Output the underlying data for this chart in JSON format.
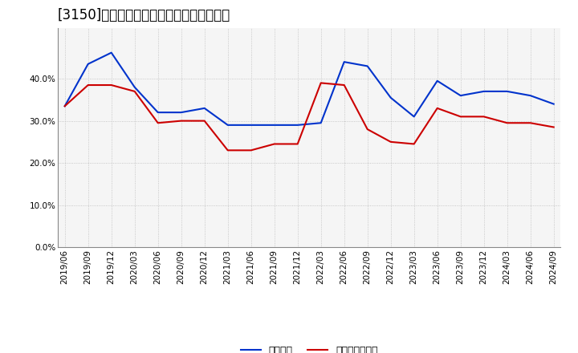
{
  "title": "[3150]　固定比率、固定長期適合率の推移",
  "x_labels": [
    "2019/06",
    "2019/09",
    "2019/12",
    "2020/03",
    "2020/06",
    "2020/09",
    "2020/12",
    "2021/03",
    "2021/06",
    "2021/09",
    "2021/12",
    "2022/03",
    "2022/06",
    "2022/09",
    "2022/12",
    "2023/03",
    "2023/06",
    "2023/09",
    "2023/12",
    "2024/03",
    "2024/06",
    "2024/09"
  ],
  "series1_name": "固定比率",
  "series1_color": "#0033cc",
  "series1_values": [
    0.335,
    0.435,
    0.462,
    0.38,
    0.32,
    0.32,
    0.33,
    0.29,
    0.29,
    0.29,
    0.29,
    0.295,
    0.44,
    0.43,
    0.355,
    0.31,
    0.395,
    0.36,
    0.37,
    0.37,
    0.36,
    0.34
  ],
  "series2_name": "固定長期適合率",
  "series2_color": "#cc0000",
  "series2_values": [
    0.335,
    0.385,
    0.385,
    0.37,
    0.295,
    0.3,
    0.3,
    0.23,
    0.23,
    0.245,
    0.245,
    0.39,
    0.385,
    0.28,
    0.25,
    0.245,
    0.33,
    0.31,
    0.31,
    0.295,
    0.295,
    0.285
  ],
  "ylim": [
    0.0,
    0.52
  ],
  "yticks": [
    0.0,
    0.1,
    0.2,
    0.3,
    0.4
  ],
  "background_color": "#ffffff",
  "plot_bg_color": "#f5f5f5",
  "grid_color": "#bbbbbb",
  "title_fontsize": 12,
  "legend_fontsize": 9,
  "tick_fontsize": 7.5
}
